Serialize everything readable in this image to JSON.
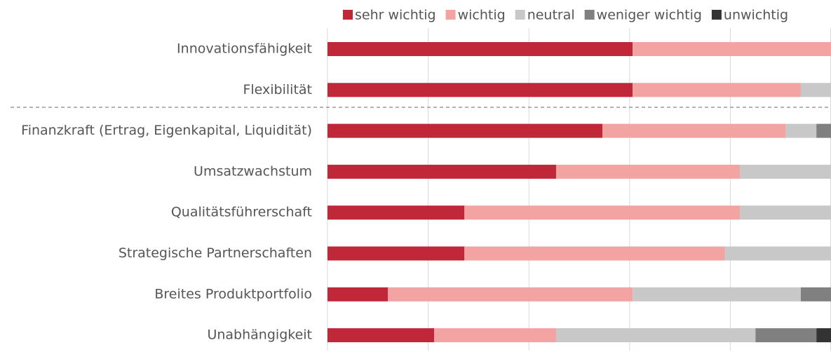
{
  "chart_data": {
    "type": "stacked_bar_horizontal",
    "categories": [
      "Innovationsfähigkeit",
      "Flexibilität",
      "Finanzkraft (Ertrag, Eigenkapital, Liquidität)",
      "Umsatzwachstum",
      "Qualitätsführerschaft",
      "Strategische Partnerschaften",
      "Breites Produktportfolio",
      "Unabhängigkeit"
    ],
    "series": [
      {
        "name": "sehr wichtig",
        "color": "#c0283a",
        "values": [
          60.6,
          60.6,
          54.6,
          45.4,
          27.2,
          27.2,
          12.0,
          21.2
        ]
      },
      {
        "name": "wichtig",
        "color": "#f4a3a3",
        "values": [
          39.4,
          33.4,
          36.4,
          36.5,
          54.7,
          51.7,
          48.6,
          24.2
        ]
      },
      {
        "name": "neutral",
        "color": "#c8c8c8",
        "values": [
          0,
          6.0,
          6.1,
          18.1,
          18.1,
          21.1,
          33.4,
          39.6
        ]
      },
      {
        "name": "weniger wichtig",
        "color": "#808080",
        "values": [
          0,
          0,
          2.9,
          0,
          0,
          0,
          6.0,
          12.1
        ]
      },
      {
        "name": "unwichtig",
        "color": "#333333",
        "values": [
          0,
          0,
          0,
          0,
          0,
          0,
          0,
          2.9
        ]
      }
    ],
    "xlim": [
      0,
      100
    ],
    "xticks": [
      0,
      20,
      40,
      60,
      80,
      100
    ],
    "grid": true,
    "legend": "top"
  }
}
